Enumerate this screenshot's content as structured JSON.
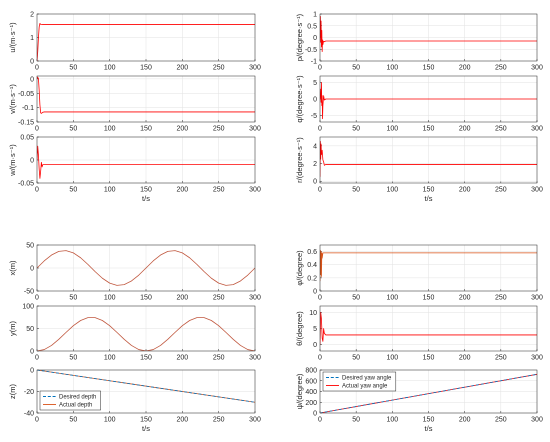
{
  "chart_data": [
    {
      "type": "line",
      "ylabel": "u/(m·s⁻¹)",
      "xlim": [
        0,
        300
      ],
      "ylim": [
        0,
        2
      ],
      "xticks": [
        0,
        50,
        100,
        150,
        200,
        250,
        300
      ],
      "yticks": [
        0,
        1,
        2
      ],
      "grid": true,
      "series": [
        {
          "color": "#ff0000",
          "style": "solid",
          "x": [
            0,
            1,
            2,
            3,
            4,
            5,
            8,
            300
          ],
          "y": [
            0,
            0.4,
            1.0,
            1.45,
            1.6,
            1.56,
            1.55,
            1.55
          ]
        }
      ]
    },
    {
      "type": "line",
      "ylabel": "v/(m·s⁻¹)",
      "xlim": [
        0,
        300
      ],
      "ylim": [
        -0.15,
        0.01
      ],
      "xticks": [
        0,
        50,
        100,
        150,
        200,
        250,
        300
      ],
      "yticks": [
        0,
        -0.05,
        -0.1,
        -0.15
      ],
      "grid": true,
      "series": [
        {
          "color": "#ff0000",
          "style": "solid",
          "x": [
            0,
            1,
            2,
            3,
            4,
            5,
            6,
            8,
            10,
            300
          ],
          "y": [
            0,
            0.006,
            0,
            -0.04,
            -0.09,
            -0.118,
            -0.12,
            -0.116,
            -0.115,
            -0.115
          ]
        }
      ]
    },
    {
      "type": "line",
      "ylabel": "w/(m·s⁻¹)",
      "xlabel": "t/s",
      "xlim": [
        0,
        300
      ],
      "ylim": [
        -0.05,
        0.05
      ],
      "xticks": [
        0,
        50,
        100,
        150,
        200,
        250,
        300
      ],
      "yticks": [
        0.05,
        0,
        -0.05
      ],
      "grid": true,
      "series": [
        {
          "color": "#ff0000",
          "style": "solid",
          "x": [
            0,
            1,
            2,
            3,
            4,
            5,
            6,
            7,
            8,
            10,
            300
          ],
          "y": [
            0,
            0.03,
            0.01,
            -0.02,
            -0.04,
            -0.025,
            -0.005,
            -0.015,
            -0.01,
            -0.01,
            -0.01
          ]
        }
      ]
    },
    {
      "type": "line",
      "ylabel": "p/(degree·s⁻¹)",
      "xlim": [
        0,
        300
      ],
      "ylim": [
        -1,
        1
      ],
      "xticks": [
        0,
        50,
        100,
        150,
        200,
        250,
        300
      ],
      "yticks": [
        1,
        0.5,
        0,
        -0.5,
        -1
      ],
      "grid": true,
      "series": [
        {
          "color": "#ff0000",
          "style": "solid",
          "x": [
            0,
            0.5,
            1,
            1.5,
            2,
            2.5,
            3,
            3.5,
            4,
            5,
            6,
            8,
            300
          ],
          "y": [
            0,
            0.9,
            -0.2,
            0.7,
            -0.4,
            0.3,
            -0.6,
            -0.1,
            -0.3,
            -0.15,
            -0.18,
            -0.15,
            -0.15
          ]
        }
      ]
    },
    {
      "type": "line",
      "ylabel": "q/(degree·s⁻¹)",
      "xlim": [
        0,
        300
      ],
      "ylim": [
        -7,
        7
      ],
      "xticks": [
        0,
        50,
        100,
        150,
        200,
        250,
        300
      ],
      "yticks": [
        5,
        0,
        -5
      ],
      "grid": true,
      "series": [
        {
          "color": "#ff0000",
          "style": "solid",
          "x": [
            0,
            1,
            1.5,
            2,
            2.5,
            3,
            3.5,
            4,
            5,
            6,
            8,
            300
          ],
          "y": [
            0,
            3,
            -1,
            5,
            -2,
            1,
            -6,
            -2,
            1,
            -0.3,
            0,
            0
          ]
        }
      ]
    },
    {
      "type": "line",
      "ylabel": "r/(degree·s⁻¹)",
      "xlabel": "t/s",
      "xlim": [
        0,
        300
      ],
      "ylim": [
        -0.2,
        5
      ],
      "xticks": [
        0,
        50,
        100,
        150,
        200,
        250,
        300
      ],
      "yticks": [
        4,
        2,
        0
      ],
      "grid": true,
      "series": [
        {
          "color": "#ff0000",
          "style": "solid",
          "x": [
            0,
            0.5,
            1,
            1.5,
            2,
            3,
            4,
            5,
            6,
            8,
            10,
            300
          ],
          "y": [
            0.5,
            4.5,
            2.5,
            4.2,
            3,
            3.5,
            2.4,
            2.2,
            1.8,
            1.9,
            1.9,
            1.9
          ]
        }
      ]
    },
    {
      "type": "line",
      "ylabel": "x(m)",
      "xlim": [
        0,
        300
      ],
      "ylim": [
        -50,
        50
      ],
      "xticks": [
        0,
        50,
        100,
        150,
        200,
        250,
        300
      ],
      "yticks": [
        50,
        0,
        -50
      ],
      "grid": true,
      "series": [
        {
          "color": "#c0573e",
          "style": "solid",
          "x": [
            0,
            10,
            20,
            30,
            40,
            50,
            60,
            70,
            80,
            90,
            100,
            110,
            120,
            130,
            140,
            150,
            160,
            170,
            180,
            190,
            200,
            210,
            220,
            230,
            240,
            250,
            260,
            270,
            280,
            290,
            300
          ],
          "y": [
            0,
            15.5,
            28.2,
            36.1,
            37.8,
            32.9,
            22.3,
            7.9,
            -7.9,
            -22.3,
            -32.9,
            -37.8,
            -36.1,
            -28.2,
            -15.5,
            0,
            15.5,
            28.2,
            36.1,
            37.8,
            32.9,
            22.3,
            7.9,
            -7.9,
            -22.3,
            -32.9,
            -37.8,
            -36.1,
            -28.2,
            -15.5,
            0
          ]
        }
      ]
    },
    {
      "type": "line",
      "ylabel": "y(m)",
      "xlim": [
        0,
        300
      ],
      "ylim": [
        0,
        100
      ],
      "xticks": [
        0,
        50,
        100,
        150,
        200,
        250,
        300
      ],
      "yticks": [
        100,
        50,
        0
      ],
      "grid": true,
      "series": [
        {
          "color": "#c0573e",
          "style": "solid",
          "x": [
            0,
            10,
            20,
            30,
            40,
            50,
            60,
            70,
            80,
            90,
            100,
            110,
            120,
            130,
            140,
            150,
            160,
            170,
            180,
            190,
            200,
            210,
            220,
            230,
            240,
            250,
            260,
            270,
            280,
            290,
            300
          ],
          "y": [
            0,
            3.2,
            12.4,
            25.9,
            41.4,
            56.3,
            67.8,
            74.2,
            74.2,
            67.8,
            56.3,
            41.4,
            25.9,
            12.4,
            3.2,
            0,
            3.2,
            12.4,
            25.9,
            41.4,
            56.3,
            67.8,
            74.2,
            74.2,
            67.8,
            56.3,
            41.4,
            25.9,
            12.4,
            3.2,
            0
          ]
        }
      ]
    },
    {
      "type": "line",
      "ylabel": "z(m)",
      "xlabel": "t/s",
      "xlim": [
        0,
        300
      ],
      "ylim": [
        -40,
        0
      ],
      "xticks": [
        0,
        50,
        100,
        150,
        200,
        250,
        300
      ],
      "yticks": [
        0,
        -20,
        -40
      ],
      "grid": true,
      "legend": "bottom-left",
      "series": [
        {
          "name": "Desired depth",
          "color": "#0072bd",
          "style": "dashed",
          "x": [
            0,
            300
          ],
          "y": [
            0,
            -30
          ]
        },
        {
          "name": "Actual depth",
          "color": "#d95319",
          "style": "solid",
          "x": [
            0,
            300
          ],
          "y": [
            0,
            -30
          ]
        }
      ]
    },
    {
      "type": "line",
      "ylabel": "φ/(degree)",
      "xlim": [
        0,
        300
      ],
      "ylim": [
        0,
        0.7
      ],
      "xticks": [
        0,
        50,
        100,
        150,
        200,
        250,
        300
      ],
      "yticks": [
        0.6,
        0.4,
        0.2,
        0
      ],
      "grid": true,
      "series": [
        {
          "color": "#d95319",
          "style": "solid",
          "x": [
            0,
            0.5,
            1,
            1.5,
            2,
            2.5,
            3,
            4,
            6,
            300
          ],
          "y": [
            0.15,
            0.62,
            0.25,
            0.6,
            0.22,
            0.58,
            0.5,
            0.58,
            0.58,
            0.58
          ]
        }
      ]
    },
    {
      "type": "line",
      "ylabel": "θ/(degree)",
      "xlim": [
        0,
        300
      ],
      "ylim": [
        -2,
        12
      ],
      "xticks": [
        0,
        50,
        100,
        150,
        200,
        250,
        300
      ],
      "yticks": [
        10,
        5,
        0
      ],
      "grid": true,
      "series": [
        {
          "color": "#ff0000",
          "style": "solid",
          "x": [
            0,
            1,
            2,
            3,
            4,
            5,
            6,
            8,
            300
          ],
          "y": [
            0,
            10,
            8,
            2,
            1,
            5,
            3.5,
            3,
            3
          ]
        }
      ]
    },
    {
      "type": "line",
      "ylabel": "ψ/(degree)",
      "xlabel": "t/s",
      "xlim": [
        0,
        300
      ],
      "ylim": [
        0,
        800
      ],
      "xticks": [
        0,
        50,
        100,
        150,
        200,
        250,
        300
      ],
      "yticks": [
        800,
        600,
        400,
        200,
        0
      ],
      "grid": true,
      "legend": "top-left",
      "series": [
        {
          "name": "Desired yaw angle",
          "color": "#0072bd",
          "style": "dashed",
          "x": [
            0,
            300
          ],
          "y": [
            0,
            720
          ]
        },
        {
          "name": "Actual yaw angle",
          "color": "#ff0000",
          "style": "solid",
          "x": [
            0,
            300
          ],
          "y": [
            0,
            720
          ]
        }
      ]
    }
  ]
}
